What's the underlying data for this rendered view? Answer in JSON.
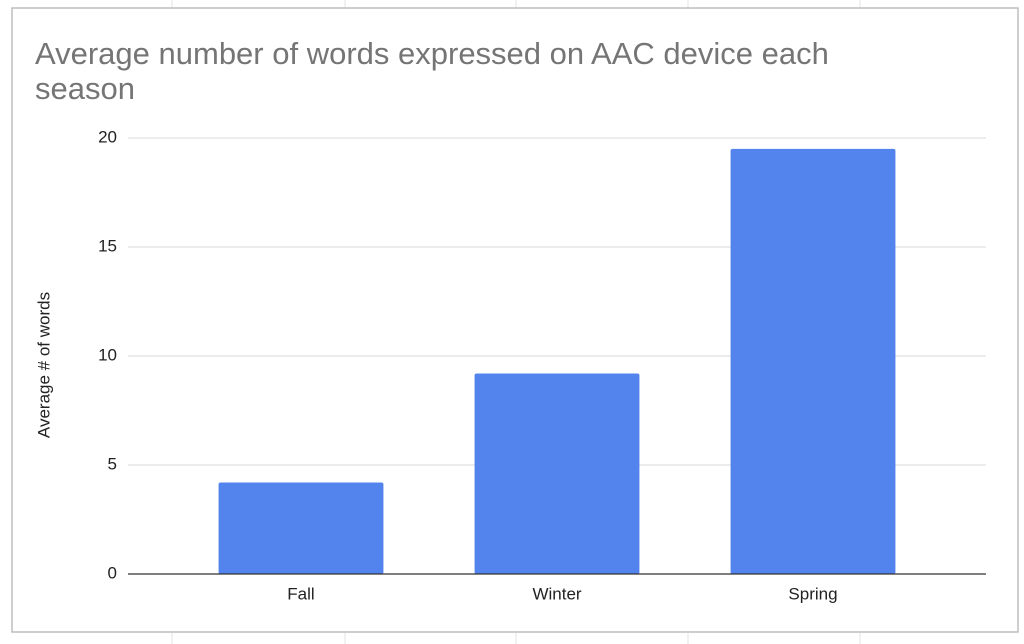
{
  "chart_data": {
    "type": "bar",
    "title": "Average number of words expressed on AAC device each season",
    "y_label": "Average # of words",
    "categories": [
      "Fall",
      "Winter",
      "Spring"
    ],
    "values": [
      4.2,
      9.2,
      19.5
    ],
    "color": "#5383ec",
    "ylim": [
      0,
      20
    ],
    "yticks": [
      0,
      5,
      10,
      15,
      20
    ],
    "grid": true
  }
}
